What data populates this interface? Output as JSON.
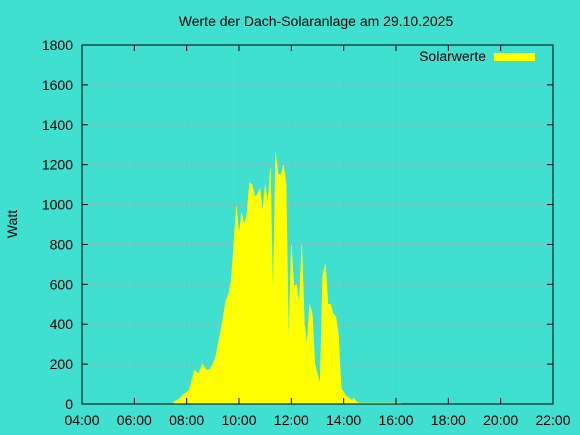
{
  "chart_data": {
    "type": "area",
    "title": "Werte der Dach-Solaranlage am 29.10.2025",
    "xlabel": "",
    "ylabel": "Watt",
    "x_unit": "hour",
    "xlim": [
      4,
      22
    ],
    "ylim": [
      0,
      1800
    ],
    "grid": true,
    "legend_position": "top-right",
    "x_ticks": [
      {
        "value": 4,
        "label": "04:00"
      },
      {
        "value": 6,
        "label": "06:00"
      },
      {
        "value": 8,
        "label": "08:00"
      },
      {
        "value": 10,
        "label": "10:00"
      },
      {
        "value": 12,
        "label": "12:00"
      },
      {
        "value": 14,
        "label": "14:00"
      },
      {
        "value": 16,
        "label": "16:00"
      },
      {
        "value": 18,
        "label": "18:00"
      },
      {
        "value": 20,
        "label": "20:00"
      },
      {
        "value": 22,
        "label": "22:00"
      }
    ],
    "y_ticks": [
      {
        "value": 0,
        "label": "0"
      },
      {
        "value": 200,
        "label": "200"
      },
      {
        "value": 400,
        "label": "400"
      },
      {
        "value": 600,
        "label": "600"
      },
      {
        "value": 800,
        "label": "800"
      },
      {
        "value": 1000,
        "label": "1000"
      },
      {
        "value": 1200,
        "label": "1200"
      },
      {
        "value": 1400,
        "label": "1400"
      },
      {
        "value": 1600,
        "label": "1600"
      },
      {
        "value": 1800,
        "label": "1800"
      }
    ],
    "series": [
      {
        "name": "Solarwerte",
        "color": "#ffff00",
        "x": [
          7.5,
          7.7,
          7.9,
          8.1,
          8.3,
          8.45,
          8.6,
          8.75,
          8.9,
          9.1,
          9.2,
          9.35,
          9.5,
          9.6,
          9.7,
          9.8,
          9.9,
          10.0,
          10.1,
          10.2,
          10.3,
          10.4,
          10.5,
          10.6,
          10.7,
          10.8,
          10.9,
          11.0,
          11.1,
          11.2,
          11.3,
          11.4,
          11.5,
          11.6,
          11.7,
          11.8,
          11.9,
          12.0,
          12.1,
          12.2,
          12.3,
          12.4,
          12.5,
          12.6,
          12.7,
          12.8,
          12.9,
          13.0,
          13.1,
          13.2,
          13.3,
          13.4,
          13.5,
          13.6,
          13.7,
          13.8,
          13.9,
          14.0,
          14.1,
          14.2,
          14.3,
          14.4,
          14.5,
          14.6,
          14.7,
          14.8,
          14.9,
          15.0,
          15.1,
          15.2,
          15.3,
          15.4,
          15.5,
          15.6,
          15.7,
          15.8,
          16.0,
          16.15,
          16.3
        ],
        "values": [
          10,
          25,
          50,
          70,
          170,
          150,
          200,
          170,
          175,
          230,
          300,
          400,
          520,
          550,
          620,
          800,
          990,
          850,
          960,
          900,
          950,
          1110,
          1100,
          1040,
          1050,
          1080,
          960,
          1100,
          1000,
          1180,
          500,
          1260,
          1150,
          1150,
          1200,
          1100,
          300,
          800,
          590,
          600,
          500,
          800,
          400,
          300,
          500,
          450,
          200,
          150,
          100,
          650,
          700,
          500,
          500,
          450,
          440,
          350,
          80,
          60,
          40,
          30,
          20,
          30,
          10,
          5,
          5,
          5,
          5,
          5,
          5,
          5,
          5,
          5,
          5,
          5,
          5,
          5,
          5,
          5,
          0
        ]
      }
    ]
  }
}
